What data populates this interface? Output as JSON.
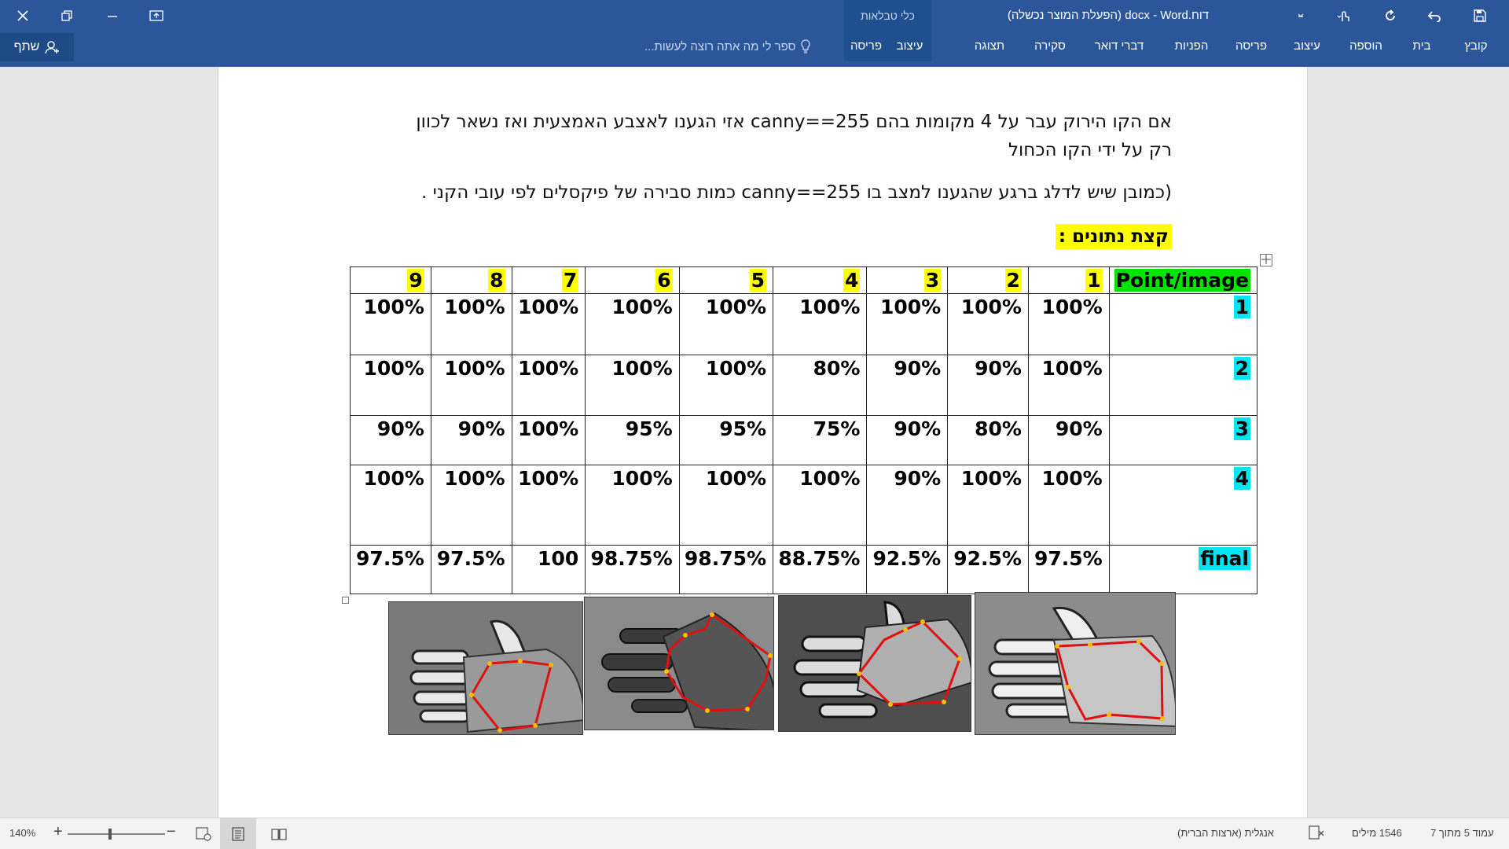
{
  "titlebar": {
    "title": "דוח.docx - Word (הפעלת המוצר נכשלה)",
    "table_tools_label": "כלי טבלאות"
  },
  "ribbon": {
    "tabs": [
      "קובץ",
      "בית",
      "הוספה",
      "עיצוב",
      "פריסה",
      "הפניות",
      "דברי דואר",
      "סקירה",
      "תצוגה"
    ],
    "context_tabs": [
      "עיצוב",
      "פריסה"
    ],
    "tell_me": "ספר לי מה אתה רוצה לעשות...",
    "share": "שתף"
  },
  "document": {
    "para1_line1": "אם הקו הירוק עבר על 4 מקומות בהם  canny==255 אזי הגענו לאצבע האמצעית ואז נשאר לכוון",
    "para1_line2": "רק על ידי הקו הכחול",
    "para2": "(כמובן שיש לדלג ברגע שהגענו למצב בו canny==255 כמות סבירה של פיקסלים לפי עובי הקני .",
    "heading": "קצת נתונים :",
    "table": {
      "corner": "Point/image",
      "columns": [
        "1",
        "2",
        "3",
        "4",
        "5",
        "6",
        "7",
        "8",
        "9"
      ],
      "rows": [
        {
          "label": "1",
          "values": [
            "100%",
            "100%",
            "100%",
            "100%",
            "100%",
            "100%",
            "100%",
            "100%",
            "100%"
          ]
        },
        {
          "label": "2",
          "values": [
            "100%",
            "90%",
            "90%",
            "80%",
            "100%",
            "100%",
            "100%",
            "100%",
            "100%"
          ]
        },
        {
          "label": "3",
          "values": [
            "90%",
            "80%",
            "90%",
            "75%",
            "95%",
            "95%",
            "100%",
            "90%",
            "90%"
          ]
        },
        {
          "label": "4",
          "values": [
            "100%",
            "100%",
            "90%",
            "100%",
            "100%",
            "100%",
            "100%",
            "100%",
            "100%"
          ]
        },
        {
          "label": "final",
          "values": [
            "97.5%",
            "92.5%",
            "92.5%",
            "88.75%",
            "98.75%",
            "98.75%",
            "100",
            "97.5%",
            "97.5%"
          ]
        }
      ]
    },
    "images_count": 4
  },
  "statusbar": {
    "page": "עמוד 5 מתוך 7",
    "words": "1546 מילים",
    "language": "אנגלית (ארצות הברית)",
    "zoom": "140%"
  },
  "colors": {
    "ribbon": "#2b579a",
    "highlight_yellow": "#ffff00",
    "highlight_green": "#00e400",
    "highlight_cyan": "#00e5ee",
    "polygon": "#e01010"
  }
}
